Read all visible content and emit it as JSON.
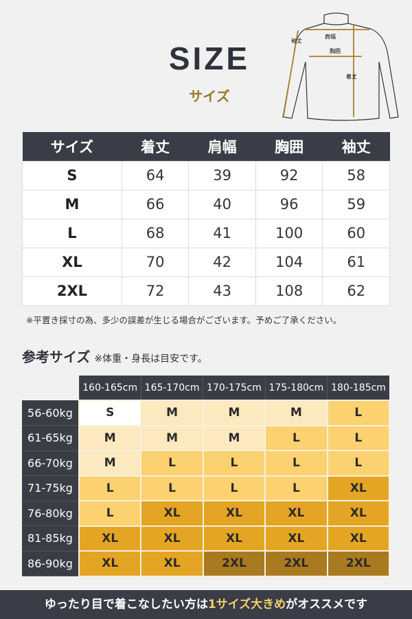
{
  "header": {
    "title": "SIZE",
    "subtitle": "サイズ"
  },
  "diagram": {
    "labels": {
      "sleeve": "袖丈",
      "shoulder": "肩幅",
      "chest": "胸囲",
      "length": "着丈"
    }
  },
  "size_table": {
    "headers": [
      "サイズ",
      "着丈",
      "肩幅",
      "胸囲",
      "袖丈"
    ],
    "rows": [
      [
        "S",
        "64",
        "39",
        "92",
        "58"
      ],
      [
        "M",
        "66",
        "40",
        "96",
        "59"
      ],
      [
        "L",
        "68",
        "41",
        "100",
        "60"
      ],
      [
        "XL",
        "70",
        "42",
        "104",
        "61"
      ],
      [
        "2XL",
        "72",
        "43",
        "108",
        "62"
      ]
    ]
  },
  "note": "※平置き採寸の為、多少の誤差が生じる場合がございます。予めご了承ください。",
  "reference": {
    "title": "参考サイズ",
    "note": "※体重・身長は目安です。",
    "heights": [
      "160-165cm",
      "165-170cm",
      "170-175cm",
      "175-180cm",
      "180-185cm"
    ],
    "rows": [
      {
        "weight": "56-60kg",
        "sizes": [
          "S",
          "M",
          "M",
          "M",
          "L"
        ]
      },
      {
        "weight": "61-65kg",
        "sizes": [
          "M",
          "M",
          "M",
          "L",
          "L"
        ]
      },
      {
        "weight": "66-70kg",
        "sizes": [
          "M",
          "L",
          "L",
          "L",
          "L"
        ]
      },
      {
        "weight": "71-75kg",
        "sizes": [
          "L",
          "L",
          "L",
          "L",
          "XL"
        ]
      },
      {
        "weight": "76-80kg",
        "sizes": [
          "L",
          "XL",
          "XL",
          "XL",
          "XL"
        ]
      },
      {
        "weight": "81-85kg",
        "sizes": [
          "XL",
          "XL",
          "XL",
          "XL",
          "XL"
        ]
      },
      {
        "weight": "86-90kg",
        "sizes": [
          "XL",
          "XL",
          "2XL",
          "2XL",
          "2XL"
        ]
      }
    ],
    "colors": {
      "S": "#ffffff",
      "M": "#fde9bf",
      "L": "#fcd170",
      "XL": "#e4a524",
      "2XL": "#a97a1f"
    }
  },
  "footer": {
    "pre": "ゆったり目で着こなしたい方は",
    "highlight": "1サイズ大きめ",
    "post": "がオススメです"
  }
}
